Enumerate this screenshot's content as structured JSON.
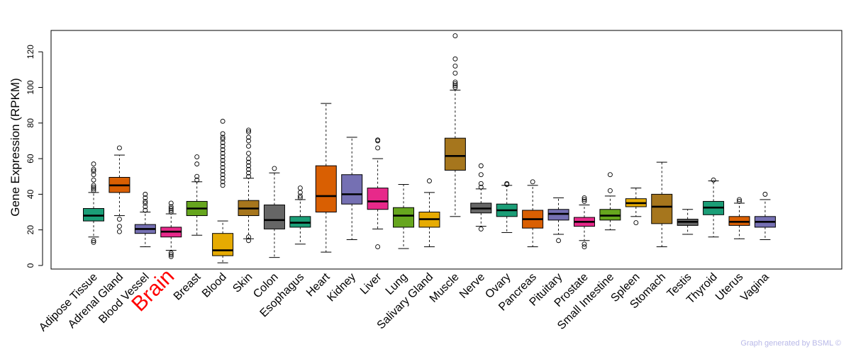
{
  "chart_data": {
    "type": "boxplot",
    "ylabel": "Gene Expression (RPKM)",
    "ylim": [
      -2,
      132
    ],
    "yticks": [
      0,
      20,
      40,
      60,
      80,
      100,
      120
    ],
    "highlight": "Brain",
    "highlight_color": "#ff0000",
    "credit": "Graph generated by BSML ©",
    "categories": [
      {
        "name": "Adipose Tissue",
        "color": "#1b9e77",
        "whisker_low": 16,
        "q1": 25,
        "median": 28,
        "q3": 32,
        "whisker_high": 41,
        "outliers": [
          13,
          14,
          42,
          43,
          44,
          45,
          48,
          51,
          53,
          54,
          57
        ]
      },
      {
        "name": "Adrenal Gland",
        "color": "#d95f02",
        "whisker_low": 28,
        "q1": 41,
        "median": 45,
        "q3": 49.5,
        "whisker_high": 62,
        "outliers": [
          19,
          22,
          26,
          66
        ]
      },
      {
        "name": "Blood Vessel",
        "color": "#7570b3",
        "whisker_low": 10.5,
        "q1": 18,
        "median": 20.5,
        "q3": 23,
        "whisker_high": 30,
        "outliers": [
          31,
          33,
          35,
          36,
          38,
          40
        ]
      },
      {
        "name": "Brain",
        "color": "#e7298a",
        "whisker_low": 8.5,
        "q1": 16,
        "median": 19,
        "q3": 21.5,
        "whisker_high": 29,
        "outliers": [
          5,
          6,
          7,
          30,
          31,
          32,
          33,
          35
        ]
      },
      {
        "name": "Breast",
        "color": "#66a61e",
        "whisker_low": 17,
        "q1": 28,
        "median": 32,
        "q3": 36,
        "whisker_high": 47,
        "outliers": [
          48,
          50,
          57,
          61
        ]
      },
      {
        "name": "Blood",
        "color": "#e6ab02",
        "whisker_low": 1.5,
        "q1": 5.5,
        "median": 8.5,
        "q3": 18,
        "whisker_high": 25,
        "outliers": [
          45,
          47,
          49,
          51,
          53,
          55,
          57,
          59,
          61,
          63,
          65,
          67,
          69,
          71,
          72,
          74,
          81
        ]
      },
      {
        "name": "Skin",
        "color": "#a6761d",
        "whisker_low": 15,
        "q1": 28,
        "median": 32,
        "q3": 36.5,
        "whisker_high": 49,
        "outliers": [
          14,
          16,
          50,
          52,
          54,
          56,
          58,
          60,
          63,
          67,
          70,
          72,
          75,
          76
        ]
      },
      {
        "name": "Colon",
        "color": "#666666",
        "whisker_low": 4.5,
        "q1": 20.5,
        "median": 25.5,
        "q3": 34,
        "whisker_high": 52,
        "outliers": [
          54.5
        ]
      },
      {
        "name": "Esophagus",
        "color": "#1b9e77",
        "whisker_low": 12,
        "q1": 21.5,
        "median": 24,
        "q3": 27.5,
        "whisker_high": 37,
        "outliers": [
          38,
          39,
          41,
          43.5
        ]
      },
      {
        "name": "Heart",
        "color": "#d95f02",
        "whisker_low": 7.5,
        "q1": 30,
        "median": 39,
        "q3": 56,
        "whisker_high": 91,
        "outliers": []
      },
      {
        "name": "Kidney",
        "color": "#7570b3",
        "whisker_low": 14.5,
        "q1": 34.5,
        "median": 40,
        "q3": 51,
        "whisker_high": 72,
        "outliers": []
      },
      {
        "name": "Liver",
        "color": "#e7298a",
        "whisker_low": 20.5,
        "q1": 31.5,
        "median": 36,
        "q3": 43.5,
        "whisker_high": 60,
        "outliers": [
          10.5,
          66,
          70,
          70.5
        ]
      },
      {
        "name": "Lung",
        "color": "#66a61e",
        "whisker_low": 9.5,
        "q1": 21.5,
        "median": 28,
        "q3": 32.5,
        "whisker_high": 45.5,
        "outliers": []
      },
      {
        "name": "Salivary Gland",
        "color": "#e6ab02",
        "whisker_low": 10.5,
        "q1": 21.5,
        "median": 26,
        "q3": 30,
        "whisker_high": 41,
        "outliers": [
          47.5
        ]
      },
      {
        "name": "Muscle",
        "color": "#a6761d",
        "whisker_low": 27.5,
        "q1": 53.5,
        "median": 61.5,
        "q3": 71.5,
        "whisker_high": 98.5,
        "outliers": [
          100,
          101,
          102,
          103,
          108,
          112,
          116,
          129
        ]
      },
      {
        "name": "Nerve",
        "color": "#666666",
        "whisker_low": 22,
        "q1": 29.5,
        "median": 32,
        "q3": 35,
        "whisker_high": 43,
        "outliers": [
          20.5,
          44,
          46,
          51,
          56
        ]
      },
      {
        "name": "Ovary",
        "color": "#1b9e77",
        "whisker_low": 18.5,
        "q1": 27.5,
        "median": 31,
        "q3": 34.5,
        "whisker_high": 45,
        "outliers": [
          45.5,
          46
        ]
      },
      {
        "name": "Pancreas",
        "color": "#d95f02",
        "whisker_low": 10.5,
        "q1": 21,
        "median": 26,
        "q3": 31,
        "whisker_high": 45,
        "outliers": [
          47
        ]
      },
      {
        "name": "Pituitary",
        "color": "#7570b3",
        "whisker_low": 17.5,
        "q1": 25.5,
        "median": 29,
        "q3": 31.5,
        "whisker_high": 38,
        "outliers": [
          14
        ]
      },
      {
        "name": "Prostate",
        "color": "#e7298a",
        "whisker_low": 14,
        "q1": 22,
        "median": 24.5,
        "q3": 27,
        "whisker_high": 34,
        "outliers": [
          10.5,
          12,
          36,
          37,
          38
        ]
      },
      {
        "name": "Small Intestine",
        "color": "#66a61e",
        "whisker_low": 20,
        "q1": 25.5,
        "median": 28,
        "q3": 31.5,
        "whisker_high": 39,
        "outliers": [
          42,
          51
        ]
      },
      {
        "name": "Spleen",
        "color": "#e6ab02",
        "whisker_low": 27.5,
        "q1": 33,
        "median": 35,
        "q3": 37.5,
        "whisker_high": 43.5,
        "outliers": [
          24
        ]
      },
      {
        "name": "Stomach",
        "color": "#a6761d",
        "whisker_low": 10.5,
        "q1": 23.5,
        "median": 33,
        "q3": 40,
        "whisker_high": 58,
        "outliers": []
      },
      {
        "name": "Testis",
        "color": "#666666",
        "whisker_low": 17.5,
        "q1": 22.5,
        "median": 24.5,
        "q3": 26,
        "whisker_high": 31.5,
        "outliers": []
      },
      {
        "name": "Thyroid",
        "color": "#1b9e77",
        "whisker_low": 16,
        "q1": 28.5,
        "median": 32.5,
        "q3": 36,
        "whisker_high": 47.5,
        "outliers": [
          48
        ]
      },
      {
        "name": "Uterus",
        "color": "#d95f02",
        "whisker_low": 15,
        "q1": 22.5,
        "median": 24.5,
        "q3": 27.5,
        "whisker_high": 35,
        "outliers": [
          36,
          37
        ]
      },
      {
        "name": "Vagina",
        "color": "#7570b3",
        "whisker_low": 14.5,
        "q1": 21.5,
        "median": 24.5,
        "q3": 27.5,
        "whisker_high": 37,
        "outliers": [
          40
        ]
      }
    ]
  }
}
